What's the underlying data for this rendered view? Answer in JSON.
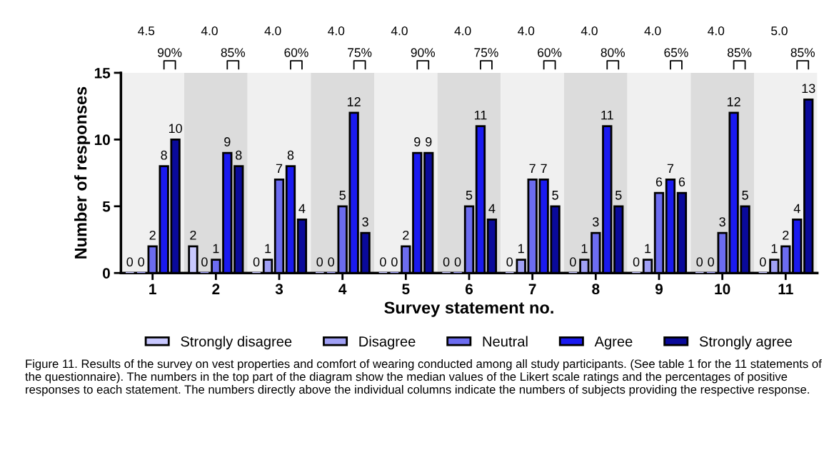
{
  "chart_data": {
    "type": "bar",
    "categories": [
      "1",
      "2",
      "3",
      "4",
      "5",
      "6",
      "7",
      "8",
      "9",
      "10",
      "11"
    ],
    "xlabel": "Survey statement no.",
    "ylabel": "Number of responses",
    "ylim": [
      0,
      15
    ],
    "yticks": [
      0,
      5,
      10,
      15
    ],
    "data_labels": true,
    "legend": "bottom",
    "grid": false,
    "series": [
      {
        "name": "Strongly disagree",
        "color": "#c8c8ff",
        "values": [
          0,
          2,
          0,
          0,
          0,
          0,
          0,
          0,
          0,
          0,
          0
        ]
      },
      {
        "name": "Disagree",
        "color": "#a0a0f5",
        "values": [
          0,
          0,
          1,
          0,
          0,
          0,
          1,
          1,
          1,
          0,
          1
        ]
      },
      {
        "name": "Neutral",
        "color": "#6c6cf0",
        "values": [
          2,
          1,
          7,
          5,
          2,
          5,
          7,
          3,
          6,
          3,
          2
        ]
      },
      {
        "name": "Agree",
        "color": "#1a1af0",
        "values": [
          8,
          9,
          8,
          12,
          9,
          11,
          7,
          11,
          7,
          12,
          4
        ]
      },
      {
        "name": "Strongly agree",
        "color": "#0a0a9a",
        "values": [
          10,
          8,
          4,
          3,
          9,
          4,
          5,
          5,
          6,
          5,
          13
        ]
      }
    ],
    "bands": [
      {
        "axis": "x",
        "from": "1",
        "to": "1",
        "color": "#f0f0f0"
      },
      {
        "axis": "x",
        "from": "2",
        "to": "2",
        "color": "#dcdcdc"
      },
      {
        "axis": "x",
        "from": "3",
        "to": "3",
        "color": "#f0f0f0"
      },
      {
        "axis": "x",
        "from": "4",
        "to": "4",
        "color": "#dcdcdc"
      },
      {
        "axis": "x",
        "from": "5",
        "to": "5",
        "color": "#f0f0f0"
      },
      {
        "axis": "x",
        "from": "6",
        "to": "6",
        "color": "#dcdcdc"
      },
      {
        "axis": "x",
        "from": "7",
        "to": "7",
        "color": "#f0f0f0"
      },
      {
        "axis": "x",
        "from": "8",
        "to": "8",
        "color": "#dcdcdc"
      },
      {
        "axis": "x",
        "from": "9",
        "to": "9",
        "color": "#f0f0f0"
      },
      {
        "axis": "x",
        "from": "10",
        "to": "10",
        "color": "#dcdcdc"
      },
      {
        "axis": "x",
        "from": "11",
        "to": "11",
        "color": "#f0f0f0"
      }
    ],
    "annotations": [
      "4.5",
      "4.0",
      "4.0",
      "4.0",
      "4.0",
      "4.0",
      "4.0",
      "4.0",
      "4.0",
      "4.0",
      "5.0",
      "90%",
      "85%",
      "60%",
      "75%",
      "90%",
      "75%",
      "60%",
      "80%",
      "65%",
      "85%",
      "85%",
      "Figure 11. Results of the survey on vest properties and comfort of wearing conducted among all study participants. (See table 1 for the 11 statements of the questionnaire). The numbers in the top part of the diagram show the median values of the Likert scale ratings and the percentages of positive responses to each statement. The numbers directly above the individual columns indicate the numbers of subjects providing the respective response."
    ]
  }
}
